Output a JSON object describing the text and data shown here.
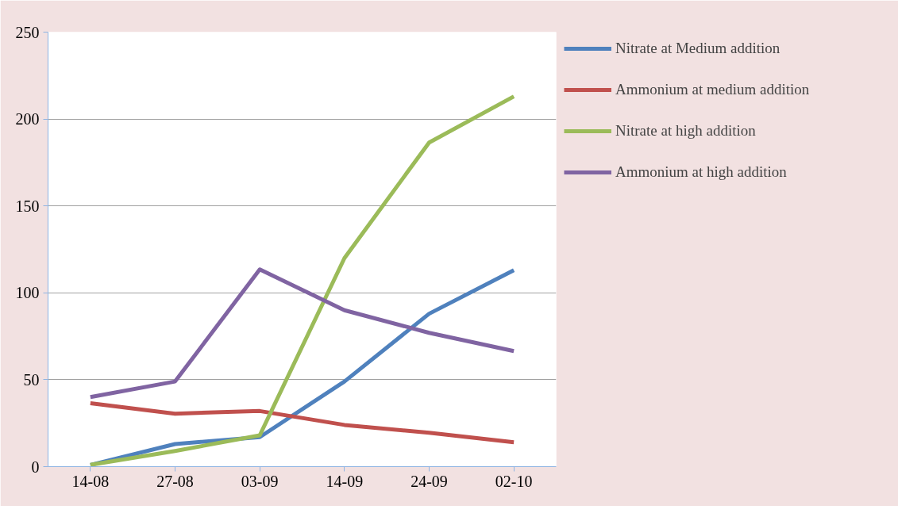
{
  "chart_data": {
    "type": "line",
    "categories": [
      "14-08",
      "27-08",
      "03-09",
      "14-09",
      "24-09",
      "02-10"
    ],
    "series": [
      {
        "name": "Nitrate at Medium addition",
        "color": "#4f81bd",
        "values": [
          1,
          13,
          17,
          49,
          88,
          113
        ]
      },
      {
        "name": "Ammonium at medium addition",
        "color": "#c0504d",
        "values": [
          36.5,
          30.5,
          32,
          24,
          19.5,
          14
        ]
      },
      {
        "name": "Nitrate at high addition",
        "color": "#9bbb59",
        "values": [
          1,
          9,
          18,
          120,
          186.5,
          213
        ]
      },
      {
        "name": "Ammonium at high addition",
        "color": "#8064a2",
        "values": [
          40,
          49,
          113.5,
          90,
          77,
          66.5
        ]
      }
    ],
    "ylim": [
      0,
      250
    ],
    "yticks": [
      0,
      50,
      100,
      150,
      200,
      250
    ],
    "grid": "y",
    "legend": "right",
    "marker": "none",
    "line_style": "solid"
  }
}
